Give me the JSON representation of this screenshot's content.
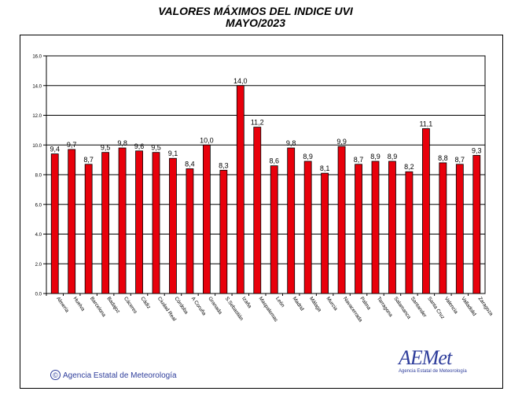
{
  "chart_data": {
    "type": "bar",
    "title": "VALORES MÁXIMOS DEL INDICE UVI",
    "subtitle": "MAYO/2023",
    "categories": [
      "Almería",
      "Huelva",
      "Barcelona",
      "Badajoz",
      "Cáceres",
      "Cádiz",
      "Ciudad Real",
      "Córdoba",
      "A Coruña",
      "Granada",
      "S.Sebastián",
      "Izaña",
      "Maspalomas",
      "León",
      "Madrid",
      "Málaga",
      "Murcia",
      "Navacerrada",
      "Palma",
      "Tarragona",
      "Salamanca",
      "Santander",
      "Santa Cruz",
      "Valencia",
      "Valladolid",
      "Zaragoza"
    ],
    "values": [
      9.4,
      9.7,
      8.7,
      9.5,
      9.8,
      9.6,
      9.5,
      9.1,
      8.4,
      10.0,
      8.3,
      14.0,
      11.2,
      8.6,
      9.8,
      8.9,
      8.1,
      9.9,
      8.7,
      8.9,
      8.9,
      8.2,
      11.1,
      8.8,
      8.7,
      9.3
    ],
    "value_labels": [
      "9,4",
      "9,7",
      "8,7",
      "9,5",
      "9,8",
      "9,6",
      "9,5",
      "9,1",
      "8,4",
      "10,0",
      "8,3",
      "14,0",
      "11,2",
      "8,6",
      "9,8",
      "8,9",
      "8,1",
      "9,9",
      "8,7",
      "8,9",
      "8,9",
      "8,2",
      "11,1",
      "8,8",
      "8,7",
      "9,3"
    ],
    "yticks": [
      "0.0",
      "2.0",
      "4.0",
      "6.0",
      "8.0",
      "10.0",
      "12.0",
      "14.0",
      "16.0"
    ],
    "ylim": [
      0,
      16
    ],
    "xlabel": "",
    "ylabel": "",
    "grid": true,
    "bar_color": "#e8000b"
  },
  "footer": {
    "copyright": "©",
    "organization": "Agencia Estatal de Meteorología",
    "logo_name": "AEMet",
    "logo_sub": "Agencia Estatal de Meteorología"
  }
}
